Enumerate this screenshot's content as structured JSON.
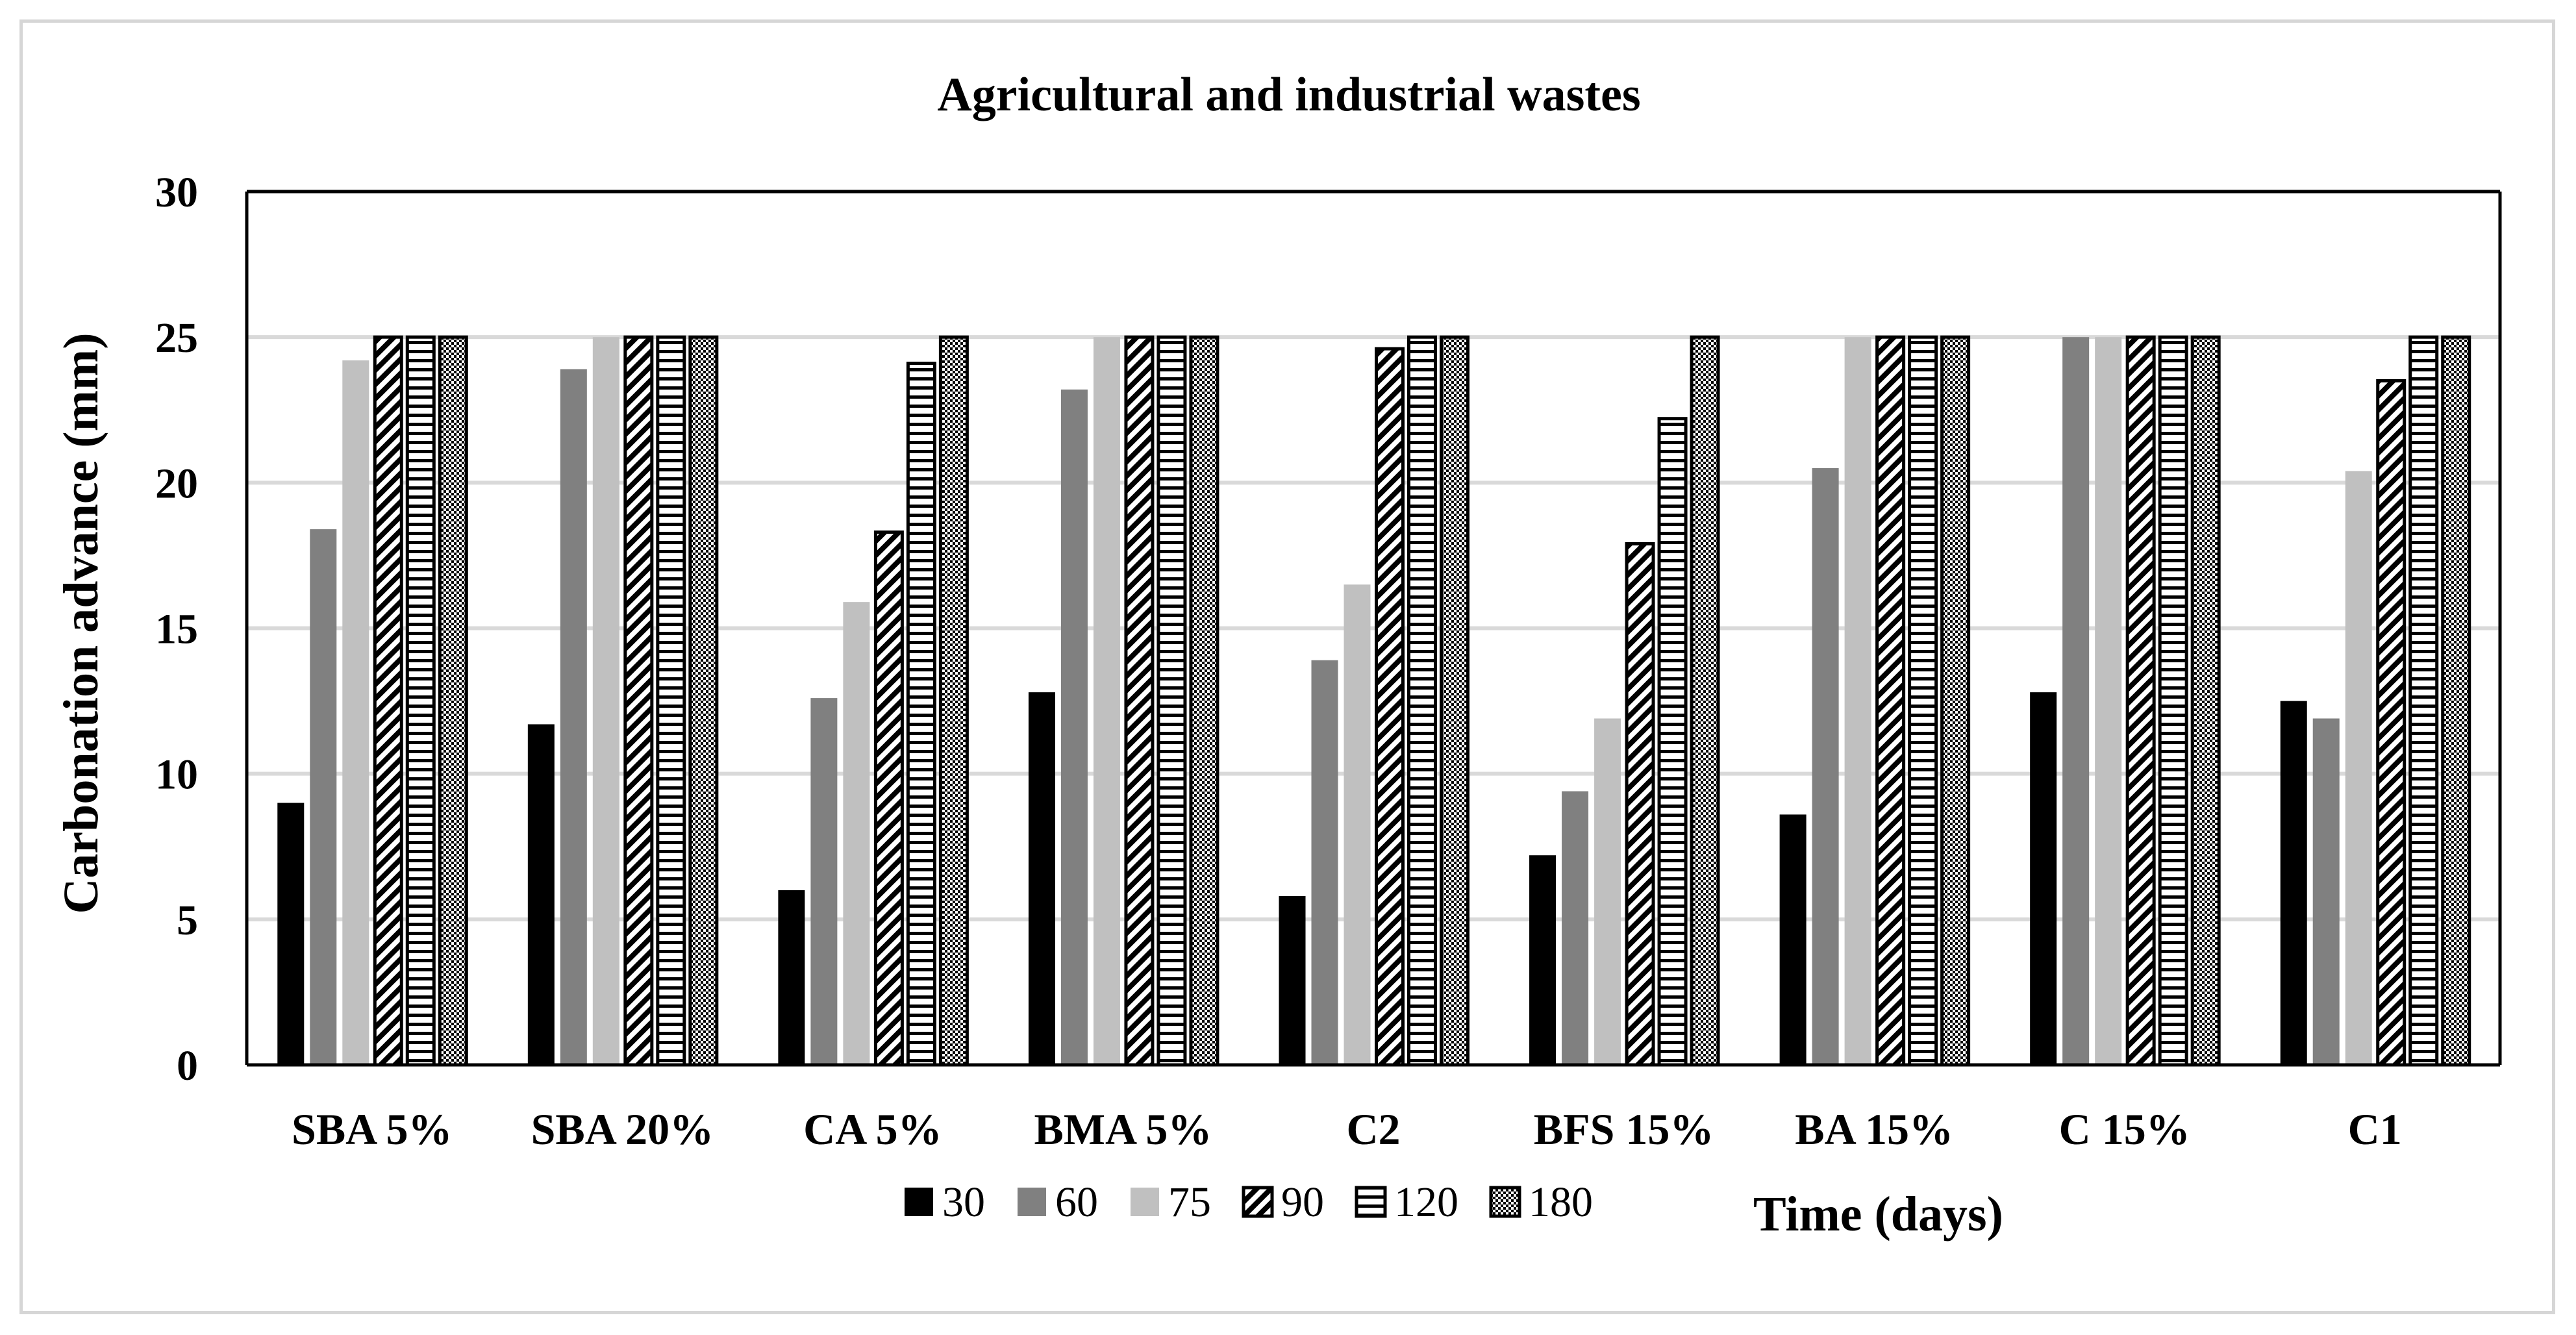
{
  "chart_data": {
    "type": "bar",
    "title": "Agricultural and industrial wastes",
    "xlabel": "Time (days)",
    "ylabel": "Carbonation advance (mm)",
    "ylim": [
      0,
      30
    ],
    "yticks": [
      0,
      5,
      10,
      15,
      20,
      25,
      30
    ],
    "grid": true,
    "legend_position": "bottom",
    "categories": [
      "SBA 5%",
      "SBA 20%",
      "CA 5%",
      "BMA 5%",
      "C2",
      "BFS 15%",
      "BA 15%",
      "C 15%",
      "C1"
    ],
    "series": [
      {
        "name": "30",
        "pattern": "solid-black",
        "values": [
          9.0,
          11.7,
          6.0,
          12.8,
          5.8,
          7.2,
          8.6,
          12.8,
          12.5
        ]
      },
      {
        "name": "60",
        "pattern": "solid-gray",
        "values": [
          18.4,
          23.9,
          12.6,
          23.2,
          13.9,
          9.4,
          20.5,
          25.0,
          11.9
        ]
      },
      {
        "name": "75",
        "pattern": "solid-light",
        "values": [
          24.2,
          25.0,
          15.9,
          25.0,
          16.5,
          11.9,
          25.0,
          25.0,
          20.4
        ]
      },
      {
        "name": "90",
        "pattern": "diagonal",
        "values": [
          25.0,
          25.0,
          18.3,
          25.0,
          24.6,
          17.9,
          25.0,
          25.0,
          23.5
        ]
      },
      {
        "name": "120",
        "pattern": "horizontal",
        "values": [
          25.0,
          25.0,
          24.1,
          25.0,
          25.0,
          22.2,
          25.0,
          25.0,
          25.0
        ]
      },
      {
        "name": "180",
        "pattern": "checker",
        "values": [
          25.0,
          25.0,
          25.0,
          25.0,
          25.0,
          25.0,
          25.0,
          25.0,
          25.0
        ]
      }
    ]
  },
  "colors": {
    "s30": "#000000",
    "s60": "#808080",
    "s75": "#c0c0c0",
    "grid": "#d9d9d9",
    "axis": "#000000",
    "frame": "#d6d6d6"
  }
}
